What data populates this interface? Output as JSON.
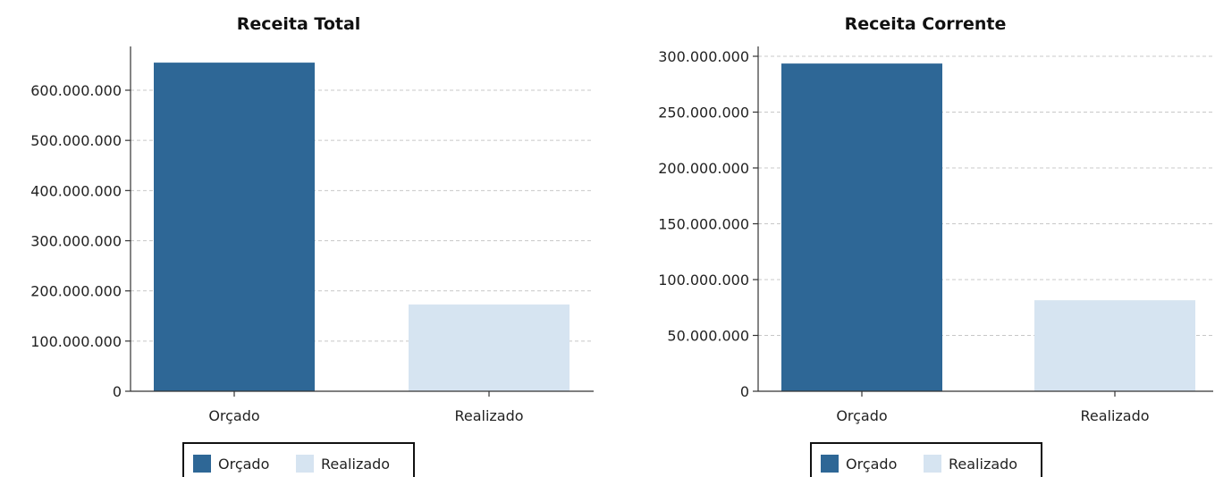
{
  "colors": {
    "orcado": "#2e6796",
    "realizado": "#d6e4f1"
  },
  "chart_data": [
    {
      "type": "bar",
      "title": "Receita Total",
      "categories": [
        "Orçado",
        "Realizado"
      ],
      "values": [
        655000000,
        173000000
      ],
      "ylim": [
        0,
        690000000
      ],
      "yticks": [
        0,
        100000000,
        200000000,
        300000000,
        400000000,
        500000000,
        600000000
      ],
      "ytick_labels": [
        "0",
        "100.000.000",
        "200.000.000",
        "300.000.000",
        "400.000.000",
        "500.000.000",
        "600.000.000"
      ],
      "grid": true,
      "legend": [
        "Orçado",
        "Realizado"
      ],
      "legend_position": "bottom"
    },
    {
      "type": "bar",
      "title": "Receita Corrente",
      "categories": [
        "Orçado",
        "Realizado"
      ],
      "values": [
        293500000,
        81500000
      ],
      "ylim": [
        0,
        300000000
      ],
      "yticks": [
        0,
        50000000,
        100000000,
        150000000,
        200000000,
        250000000,
        300000000
      ],
      "ytick_labels": [
        "0",
        "50.000.000",
        "100.000.000",
        "150.000.000",
        "200.000.000",
        "250.000.000",
        "300.000.000"
      ],
      "grid": true,
      "legend": [
        "Orçado",
        "Realizado"
      ],
      "legend_position": "bottom"
    }
  ]
}
